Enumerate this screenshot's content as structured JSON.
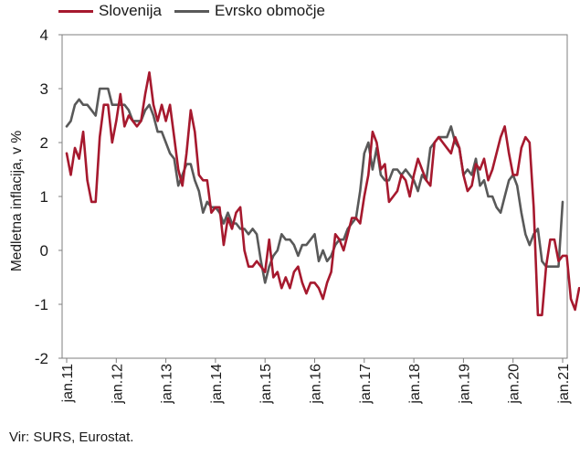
{
  "chart_data": {
    "type": "line",
    "title": "",
    "ylabel": "Medletna inflacija, v %",
    "ylim": [
      -2,
      4
    ],
    "yticks": [
      "4",
      "3",
      "2",
      "1",
      "0",
      "-1",
      "-2"
    ],
    "xticks": [
      "jan.11",
      "jan.12",
      "jan.13",
      "jan.14",
      "jan.15",
      "jan.16",
      "jan.17",
      "jan.18",
      "jan.19",
      "jan.20",
      "jan.21"
    ],
    "x_range": [
      "2011-01",
      "2021-01"
    ],
    "legend_position": "top-left",
    "grid": false,
    "series": [
      {
        "name": "Slovenija",
        "color": "#a6192e",
        "values": [
          1.8,
          1.4,
          1.9,
          1.7,
          2.2,
          1.3,
          0.9,
          0.9,
          2.1,
          2.7,
          2.7,
          2.0,
          2.4,
          2.9,
          2.3,
          2.5,
          2.4,
          2.3,
          2.4,
          2.9,
          3.3,
          2.7,
          2.4,
          2.7,
          2.4,
          2.7,
          2.1,
          1.5,
          1.2,
          1.8,
          2.6,
          2.2,
          1.4,
          1.3,
          1.3,
          0.7,
          0.8,
          0.8,
          0.1,
          0.6,
          0.4,
          0.7,
          0.8,
          0.0,
          -0.3,
          -0.3,
          -0.2,
          -0.3,
          -0.4,
          0.2,
          -0.5,
          -0.4,
          -0.7,
          -0.5,
          -0.7,
          -0.4,
          -0.3,
          -0.6,
          -0.8,
          -0.6,
          -0.6,
          -0.7,
          -0.9,
          -0.6,
          -0.4,
          0.3,
          0.2,
          0.0,
          0.3,
          0.6,
          0.6,
          0.5,
          1.0,
          1.4,
          2.2,
          2.0,
          1.5,
          1.6,
          0.9,
          1.0,
          1.1,
          1.4,
          1.3,
          1.0,
          1.4,
          1.7,
          1.5,
          1.3,
          1.2,
          2.0,
          2.1,
          2.0,
          1.9,
          1.8,
          2.1,
          1.9,
          1.4,
          1.1,
          1.2,
          1.6,
          1.5,
          1.7,
          1.3,
          1.5,
          1.8,
          2.1,
          2.3,
          1.8,
          1.4,
          1.4,
          1.9,
          2.1,
          2.0,
          0.8,
          -1.2,
          -1.2,
          -0.3,
          0.2,
          0.2,
          -0.2,
          -0.1,
          -0.1,
          -0.9,
          -1.1,
          -0.7
        ]
      },
      {
        "name": "Evrsko območje",
        "color": "#595959",
        "values": [
          2.3,
          2.4,
          2.7,
          2.8,
          2.7,
          2.7,
          2.6,
          2.5,
          3.0,
          3.0,
          3.0,
          2.7,
          2.7,
          2.7,
          2.7,
          2.6,
          2.4,
          2.4,
          2.4,
          2.6,
          2.7,
          2.5,
          2.2,
          2.2,
          2.0,
          1.8,
          1.7,
          1.2,
          1.4,
          1.6,
          1.6,
          1.3,
          1.1,
          0.7,
          0.9,
          0.8,
          0.8,
          0.7,
          0.5,
          0.7,
          0.5,
          0.5,
          0.4,
          0.4,
          0.3,
          0.4,
          0.3,
          -0.2,
          -0.6,
          -0.3,
          -0.1,
          0.0,
          0.3,
          0.2,
          0.2,
          0.1,
          -0.1,
          0.1,
          0.1,
          0.2,
          0.3,
          -0.2,
          0.0,
          -0.2,
          -0.1,
          0.1,
          0.2,
          0.2,
          0.4,
          0.5,
          0.6,
          1.1,
          1.8,
          2.0,
          1.5,
          1.9,
          1.4,
          1.3,
          1.3,
          1.5,
          1.5,
          1.4,
          1.5,
          1.4,
          1.3,
          1.1,
          1.4,
          1.3,
          1.9,
          2.0,
          2.1,
          2.1,
          2.1,
          2.3,
          2.0,
          1.9,
          1.4,
          1.5,
          1.4,
          1.7,
          1.2,
          1.3,
          1.0,
          1.0,
          0.8,
          0.7,
          1.0,
          1.3,
          1.4,
          1.2,
          0.7,
          0.3,
          0.1,
          0.3,
          0.4,
          -0.2,
          -0.3,
          -0.3,
          -0.3,
          -0.3,
          0.9
        ]
      }
    ]
  },
  "source_note": "Vir: SURS, Eurostat."
}
